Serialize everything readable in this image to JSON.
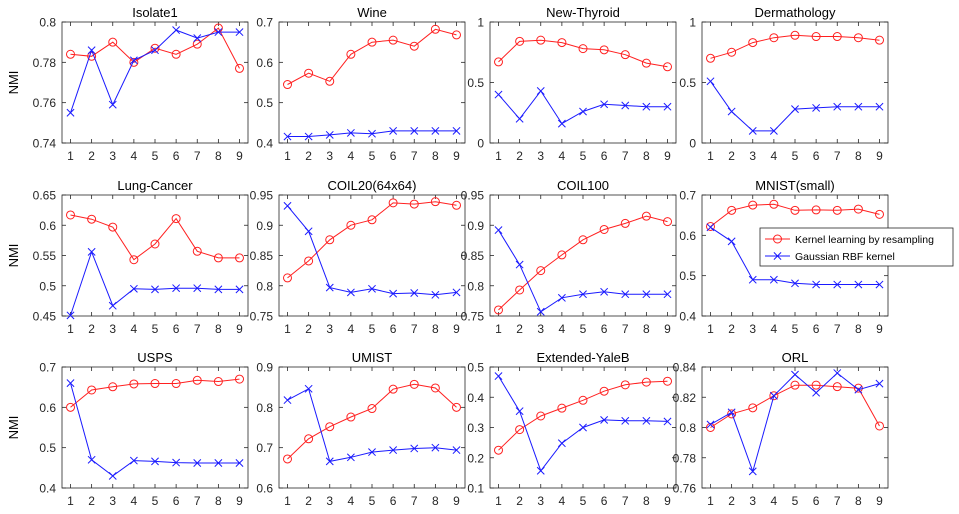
{
  "figure": {
    "legend": [
      "Kernel learning by resampling",
      "Gaussian RBF kernel"
    ]
  },
  "colors": {
    "resampling": "#ff2020",
    "rbf": "#1a1aff"
  },
  "chart_data": [
    {
      "type": "line",
      "title": "Isolate1",
      "ylabel": "NMI",
      "x": [
        1,
        2,
        3,
        4,
        5,
        6,
        7,
        8,
        9
      ],
      "ylim": [
        0.74,
        0.8
      ],
      "yticks": [
        0.74,
        0.76,
        0.78,
        0.8
      ],
      "ytick_labels": [
        "0.74",
        "0.76",
        "0.78",
        "0.8"
      ],
      "series": [
        {
          "name": "Kernel learning by resampling",
          "values": [
            0.784,
            0.783,
            0.79,
            0.78,
            0.787,
            0.784,
            0.789,
            0.797,
            0.777
          ]
        },
        {
          "name": "Gaussian RBF kernel",
          "values": [
            0.755,
            0.786,
            0.759,
            0.781,
            0.786,
            0.796,
            0.792,
            0.795,
            0.795
          ]
        }
      ]
    },
    {
      "type": "line",
      "title": "Wine",
      "ylabel": "",
      "x": [
        1,
        2,
        3,
        4,
        5,
        6,
        7,
        8,
        9
      ],
      "ylim": [
        0.4,
        0.7
      ],
      "yticks": [
        0.4,
        0.5,
        0.6,
        0.7
      ],
      "ytick_labels": [
        "0.4",
        "0.5",
        "0.6",
        "0.7"
      ],
      "series": [
        {
          "name": "Kernel learning by resampling",
          "values": [
            0.545,
            0.573,
            0.553,
            0.62,
            0.65,
            0.655,
            0.64,
            0.682,
            0.668
          ]
        },
        {
          "name": "Gaussian RBF kernel",
          "values": [
            0.416,
            0.416,
            0.42,
            0.425,
            0.423,
            0.43,
            0.43,
            0.43,
            0.43
          ]
        }
      ]
    },
    {
      "type": "line",
      "title": "New-Thyroid",
      "ylabel": "",
      "x": [
        1,
        2,
        3,
        4,
        5,
        6,
        7,
        8,
        9
      ],
      "ylim": [
        0,
        1
      ],
      "yticks": [
        0,
        0.5,
        1
      ],
      "ytick_labels": [
        "0",
        "0.5",
        "1"
      ],
      "series": [
        {
          "name": "Kernel learning by resampling",
          "values": [
            0.67,
            0.84,
            0.85,
            0.83,
            0.78,
            0.77,
            0.73,
            0.66,
            0.63
          ]
        },
        {
          "name": "Gaussian RBF kernel",
          "values": [
            0.4,
            0.2,
            0.43,
            0.16,
            0.26,
            0.32,
            0.31,
            0.3,
            0.3
          ]
        }
      ]
    },
    {
      "type": "line",
      "title": "Dermathology",
      "ylabel": "",
      "x": [
        1,
        2,
        3,
        4,
        5,
        6,
        7,
        8,
        9
      ],
      "ylim": [
        0,
        1
      ],
      "yticks": [
        0,
        0.5,
        1
      ],
      "ytick_labels": [
        "0",
        "0.5",
        "1"
      ],
      "series": [
        {
          "name": "Kernel learning by resampling",
          "values": [
            0.7,
            0.75,
            0.83,
            0.87,
            0.89,
            0.88,
            0.88,
            0.87,
            0.85
          ]
        },
        {
          "name": "Gaussian RBF kernel",
          "values": [
            0.51,
            0.26,
            0.1,
            0.1,
            0.28,
            0.29,
            0.3,
            0.3,
            0.3
          ]
        }
      ]
    },
    {
      "type": "line",
      "title": "Lung-Cancer",
      "ylabel": "NMI",
      "x": [
        1,
        2,
        3,
        4,
        5,
        6,
        7,
        8,
        9
      ],
      "ylim": [
        0.45,
        0.65
      ],
      "yticks": [
        0.45,
        0.5,
        0.55,
        0.6,
        0.65
      ],
      "ytick_labels": [
        "0.45",
        "0.5",
        "0.55",
        "0.6",
        "0.65"
      ],
      "series": [
        {
          "name": "Kernel learning by resampling",
          "values": [
            0.617,
            0.61,
            0.597,
            0.543,
            0.569,
            0.611,
            0.557,
            0.546,
            0.546
          ]
        },
        {
          "name": "Gaussian RBF kernel",
          "values": [
            0.451,
            0.556,
            0.467,
            0.495,
            0.494,
            0.496,
            0.496,
            0.494,
            0.494
          ]
        }
      ]
    },
    {
      "type": "line",
      "title": "COIL20(64x64)",
      "ylabel": "",
      "x": [
        1,
        2,
        3,
        4,
        5,
        6,
        7,
        8,
        9
      ],
      "ylim": [
        0.75,
        0.95
      ],
      "yticks": [
        0.75,
        0.8,
        0.85,
        0.9,
        0.95
      ],
      "ytick_labels": [
        "0.75",
        "0.8",
        "0.85",
        "0.9",
        "0.95"
      ],
      "series": [
        {
          "name": "Kernel learning by resampling",
          "values": [
            0.813,
            0.841,
            0.876,
            0.9,
            0.909,
            0.937,
            0.935,
            0.939,
            0.933
          ]
        },
        {
          "name": "Gaussian RBF kernel",
          "values": [
            0.932,
            0.89,
            0.797,
            0.789,
            0.795,
            0.787,
            0.788,
            0.785,
            0.789
          ]
        }
      ]
    },
    {
      "type": "line",
      "title": "COIL100",
      "ylabel": "",
      "x": [
        1,
        2,
        3,
        4,
        5,
        6,
        7,
        8,
        9
      ],
      "ylim": [
        0.75,
        0.95
      ],
      "yticks": [
        0.75,
        0.8,
        0.85,
        0.9,
        0.95
      ],
      "ytick_labels": [
        "0.75",
        "0.8",
        "0.85",
        "0.9",
        "0.95"
      ],
      "series": [
        {
          "name": "Kernel learning by resampling",
          "values": [
            0.76,
            0.793,
            0.825,
            0.851,
            0.876,
            0.893,
            0.903,
            0.915,
            0.906
          ]
        },
        {
          "name": "Gaussian RBF kernel",
          "values": [
            0.892,
            0.835,
            0.757,
            0.78,
            0.786,
            0.79,
            0.786,
            0.786,
            0.786
          ]
        }
      ]
    },
    {
      "type": "line",
      "title": "MNIST(small)",
      "ylabel": "",
      "x": [
        1,
        2,
        3,
        4,
        5,
        6,
        7,
        8,
        9
      ],
      "ylim": [
        0.4,
        0.7
      ],
      "yticks": [
        0.4,
        0.5,
        0.6,
        0.7
      ],
      "ytick_labels": [
        "0.4",
        "0.5",
        "0.6",
        "0.7"
      ],
      "legend": true,
      "series": [
        {
          "name": "Kernel learning by resampling",
          "values": [
            0.622,
            0.662,
            0.675,
            0.677,
            0.662,
            0.663,
            0.662,
            0.665,
            0.652
          ]
        },
        {
          "name": "Gaussian RBF kernel",
          "values": [
            0.62,
            0.585,
            0.49,
            0.49,
            0.481,
            0.478,
            0.478,
            0.478,
            0.478
          ]
        }
      ]
    },
    {
      "type": "line",
      "title": "USPS",
      "ylabel": "NMI",
      "x": [
        1,
        2,
        3,
        4,
        5,
        6,
        7,
        8,
        9
      ],
      "ylim": [
        0.4,
        0.7
      ],
      "yticks": [
        0.4,
        0.5,
        0.6,
        0.7
      ],
      "ytick_labels": [
        "0.4",
        "0.5",
        "0.6",
        "0.7"
      ],
      "series": [
        {
          "name": "Kernel learning by resampling",
          "values": [
            0.6,
            0.643,
            0.651,
            0.658,
            0.659,
            0.659,
            0.667,
            0.664,
            0.67
          ]
        },
        {
          "name": "Gaussian RBF kernel",
          "values": [
            0.66,
            0.47,
            0.43,
            0.468,
            0.466,
            0.463,
            0.462,
            0.462,
            0.462
          ]
        }
      ]
    },
    {
      "type": "line",
      "title": "UMIST",
      "ylabel": "",
      "x": [
        1,
        2,
        3,
        4,
        5,
        6,
        7,
        8,
        9
      ],
      "ylim": [
        0.6,
        0.9
      ],
      "yticks": [
        0.6,
        0.7,
        0.8,
        0.9
      ],
      "ytick_labels": [
        "0.6",
        "0.7",
        "0.8",
        "0.9"
      ],
      "series": [
        {
          "name": "Kernel learning by resampling",
          "values": [
            0.672,
            0.722,
            0.752,
            0.776,
            0.797,
            0.845,
            0.857,
            0.848,
            0.8
          ]
        },
        {
          "name": "Gaussian RBF kernel",
          "values": [
            0.818,
            0.846,
            0.666,
            0.676,
            0.689,
            0.694,
            0.698,
            0.7,
            0.694
          ]
        }
      ]
    },
    {
      "type": "line",
      "title": "Extended-YaleB",
      "ylabel": "",
      "x": [
        1,
        2,
        3,
        4,
        5,
        6,
        7,
        8,
        9
      ],
      "ylim": [
        0.1,
        0.5
      ],
      "yticks": [
        0.1,
        0.2,
        0.3,
        0.4,
        0.5
      ],
      "ytick_labels": [
        "0.1",
        "0.2",
        "0.3",
        "0.4",
        "0.5"
      ],
      "series": [
        {
          "name": "Kernel learning by resampling",
          "values": [
            0.225,
            0.293,
            0.338,
            0.364,
            0.39,
            0.42,
            0.441,
            0.45,
            0.453
          ]
        },
        {
          "name": "Gaussian RBF kernel",
          "values": [
            0.47,
            0.354,
            0.157,
            0.248,
            0.3,
            0.325,
            0.322,
            0.322,
            0.32
          ]
        }
      ]
    },
    {
      "type": "line",
      "title": "ORL",
      "ylabel": "",
      "x": [
        1,
        2,
        3,
        4,
        5,
        6,
        7,
        8,
        9
      ],
      "ylim": [
        0.76,
        0.84
      ],
      "yticks": [
        0.76,
        0.78,
        0.8,
        0.82,
        0.84
      ],
      "ytick_labels": [
        "0.76",
        "0.78",
        "0.8",
        "0.82",
        "0.84"
      ],
      "series": [
        {
          "name": "Kernel learning by resampling",
          "values": [
            0.8,
            0.809,
            0.813,
            0.821,
            0.828,
            0.828,
            0.827,
            0.826,
            0.801
          ]
        },
        {
          "name": "Gaussian RBF kernel",
          "values": [
            0.802,
            0.81,
            0.771,
            0.821,
            0.835,
            0.823,
            0.836,
            0.825,
            0.829
          ]
        }
      ]
    }
  ]
}
